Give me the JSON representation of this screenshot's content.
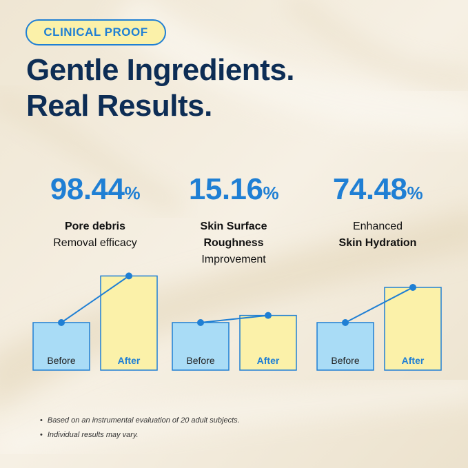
{
  "badge": "CLINICAL PROOF",
  "headline": {
    "line1": "Gentle Ingredients.",
    "line2": "Real Results."
  },
  "stats": [
    {
      "value": "98.44",
      "unit": "%",
      "label_bold": "Pore debris",
      "label_regular": "Removal efficacy"
    },
    {
      "value": "15.16",
      "unit": "%",
      "label_bold": "Skin Surface Roughness",
      "label_regular": "Improvement"
    },
    {
      "value": "74.48",
      "unit": "%",
      "label_regular": "Enhanced",
      "label_bold": "Skin Hydration"
    }
  ],
  "chart_data": [
    {
      "type": "bar",
      "categories": [
        "Before",
        "After"
      ],
      "values": [
        1.0,
        1.98
      ],
      "colors": [
        "#a9dcf6",
        "#fbf1a9"
      ]
    },
    {
      "type": "bar",
      "categories": [
        "Before",
        "After"
      ],
      "values": [
        1.0,
        1.15
      ],
      "colors": [
        "#a9dcf6",
        "#fbf1a9"
      ]
    },
    {
      "type": "bar",
      "categories": [
        "Before",
        "After"
      ],
      "values": [
        1.0,
        1.74
      ],
      "colors": [
        "#a9dcf6",
        "#fbf1a9"
      ]
    }
  ],
  "colors": {
    "accent": "#1f7fd4",
    "navy": "#0d2d55",
    "before": "#a9dcf6",
    "after": "#fbf1a9"
  },
  "footnotes": [
    "Based on an instrumental evaluation of 20 adult subjects.",
    "Individual results may vary."
  ]
}
